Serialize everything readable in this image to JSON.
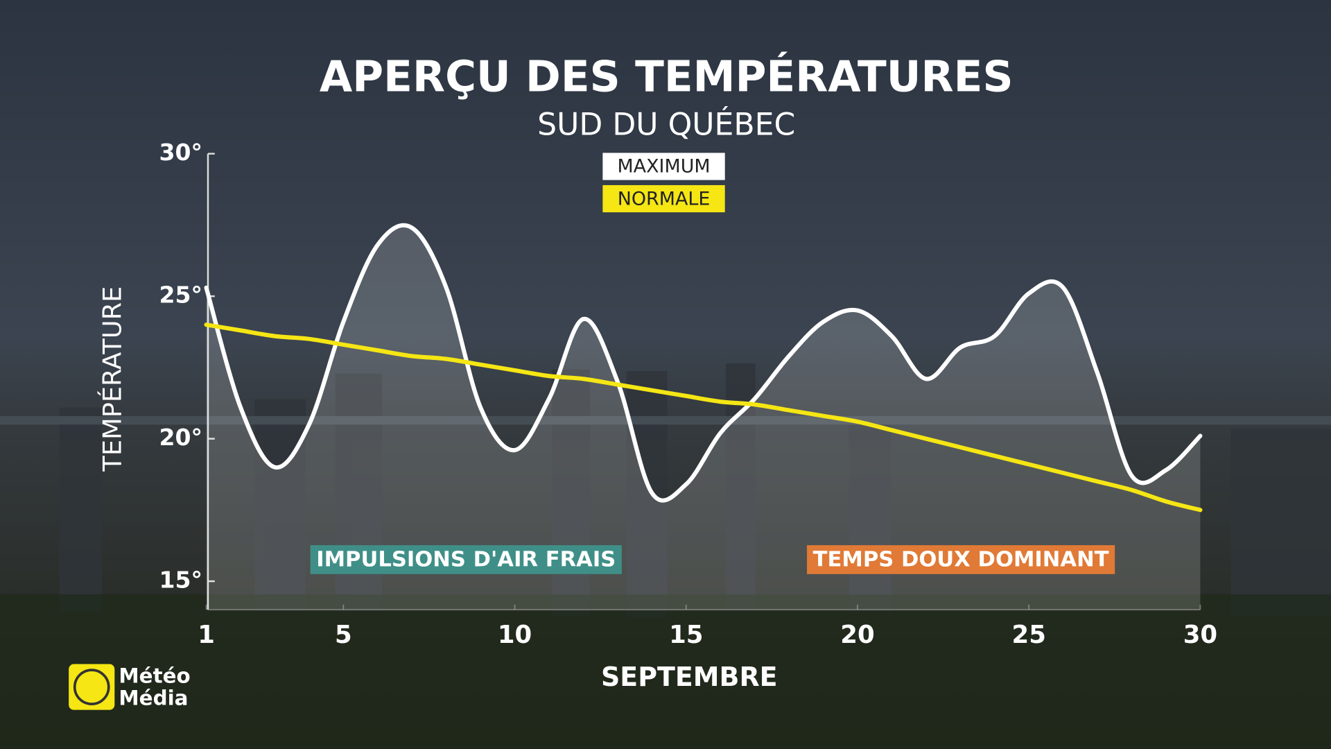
{
  "chart_data": {
    "type": "line",
    "title": "APERÇU DES TEMPÉRATURES",
    "subtitle": "SUD DU QUÉBEC",
    "y_label": "TEMPÉRATURE",
    "x_label": "SEPTEMBRE",
    "x": [
      1,
      2,
      3,
      4,
      5,
      6,
      7,
      8,
      9,
      10,
      11,
      12,
      13,
      14,
      15,
      16,
      17,
      18,
      19,
      20,
      21,
      22,
      23,
      24,
      25,
      26,
      27,
      28,
      29,
      30
    ],
    "xlim": [
      1,
      30
    ],
    "xticks": [
      1,
      5,
      10,
      15,
      20,
      25,
      30
    ],
    "ylim": [
      14,
      30
    ],
    "yticks": [
      {
        "value": 15,
        "label": "15°"
      },
      {
        "value": 20,
        "label": "20°"
      },
      {
        "value": 25,
        "label": "25°"
      },
      {
        "value": 30,
        "label": "30°"
      }
    ],
    "series": [
      {
        "name": "MAXIMUM",
        "color": "#ffffff",
        "values": [
          25.3,
          21.1,
          19.0,
          20.5,
          24.1,
          26.8,
          27.4,
          25.3,
          21.1,
          19.6,
          21.4,
          24.2,
          22.0,
          18.1,
          18.4,
          20.2,
          21.4,
          22.9,
          24.1,
          24.5,
          23.6,
          22.1,
          23.2,
          23.6,
          25.1,
          25.3,
          22.3,
          18.7,
          18.9,
          20.1
        ]
      },
      {
        "name": "NORMALE",
        "color": "#f5e614",
        "values": [
          24.0,
          23.8,
          23.6,
          23.5,
          23.3,
          23.1,
          22.9,
          22.8,
          22.6,
          22.4,
          22.2,
          22.1,
          21.9,
          21.7,
          21.5,
          21.3,
          21.2,
          21.0,
          20.8,
          20.6,
          20.3,
          20.0,
          19.7,
          19.4,
          19.1,
          18.8,
          18.5,
          18.2,
          17.8,
          17.5
        ]
      }
    ],
    "annotations": [
      {
        "text": "IMPULSIONS D'AIR FRAIS",
        "color": "#3f8f88"
      },
      {
        "text": "TEMPS DOUX DOMINANT",
        "color": "#e07a36"
      }
    ],
    "brand": [
      "Météo",
      "Média"
    ]
  }
}
